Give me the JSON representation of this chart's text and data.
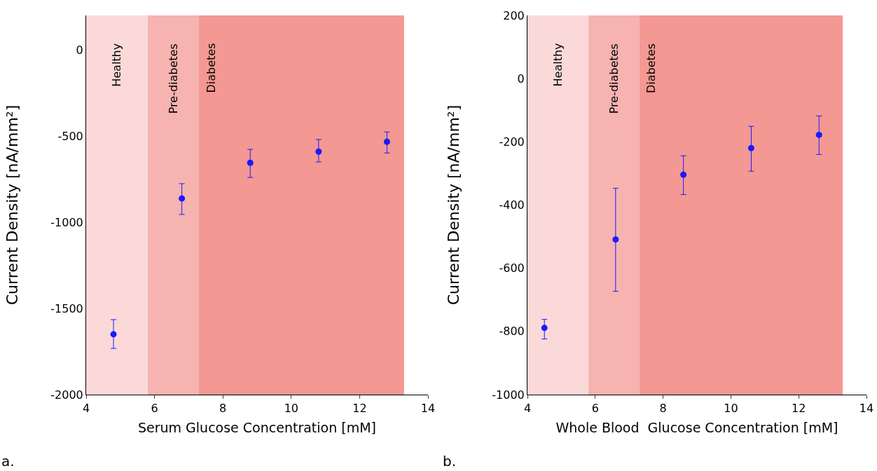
{
  "chart_data": [
    {
      "type": "scatter",
      "xlabel": "Serum Glucose Concentration [mM]",
      "ylabel": "Current Density [nA/mm²]",
      "xlim": [
        4,
        14
      ],
      "xticks": [
        4,
        6,
        8,
        10,
        12,
        14
      ],
      "ylim": [
        -2000,
        200
      ],
      "yticks": [
        -2000,
        -1500,
        -1000,
        -500,
        0
      ],
      "marker": "circle",
      "grid": false,
      "x": [
        4.8,
        6.8,
        8.8,
        10.8,
        12.8
      ],
      "series": [
        {
          "color": "#1a1aff",
          "values": [
            -1650,
            -862,
            -655,
            -590,
            -533
          ],
          "errors": [
            [
              -1732,
              -1565
            ],
            [
              -955,
              -776
            ],
            [
              -740,
              -577
            ],
            [
              -650,
              -520
            ],
            [
              -598,
              -476
            ]
          ]
        }
      ],
      "bands": [
        {
          "axis": "x",
          "from": 4,
          "to": 5.8,
          "label": "Healthy",
          "color": "#fbd9d9"
        },
        {
          "axis": "x",
          "from": 5.8,
          "to": 7.3,
          "label": "Pre-diabetes",
          "color": "#f6b3b0"
        },
        {
          "axis": "x",
          "from": 7.3,
          "to": 13.3,
          "label": "Diabetes",
          "color": "#f49893"
        }
      ],
      "annotations": [
        "a."
      ]
    },
    {
      "type": "scatter",
      "xlabel": "Whole Blood  Glucose Concentration [mM]",
      "ylabel": "Current Density [nA/mm²]",
      "xlim": [
        4,
        14
      ],
      "xticks": [
        4,
        6,
        8,
        10,
        12,
        14
      ],
      "ylim": [
        -1000,
        200
      ],
      "yticks": [
        -1000,
        -800,
        -600,
        -400,
        -200,
        0,
        200
      ],
      "marker": "circle",
      "grid": false,
      "x": [
        4.5,
        6.6,
        8.6,
        10.6,
        12.6
      ],
      "series": [
        {
          "color": "#1a1aff",
          "values": [
            -789,
            -509,
            -304,
            -220,
            -178
          ],
          "errors": [
            [
              -824,
              -762
            ],
            [
              -673,
              -347
            ],
            [
              -367,
              -244
            ],
            [
              -293,
              -151
            ],
            [
              -240,
              -118
            ]
          ]
        }
      ],
      "bands": [
        {
          "axis": "x",
          "from": 4,
          "to": 5.8,
          "label": "Healthy",
          "color": "#fbd9d9"
        },
        {
          "axis": "x",
          "from": 5.8,
          "to": 7.3,
          "label": "Pre-diabetes",
          "color": "#f6b3b0"
        },
        {
          "axis": "x",
          "from": 7.3,
          "to": 13.3,
          "label": "Diabetes",
          "color": "#f49893"
        }
      ],
      "annotations": [
        "b."
      ]
    }
  ]
}
